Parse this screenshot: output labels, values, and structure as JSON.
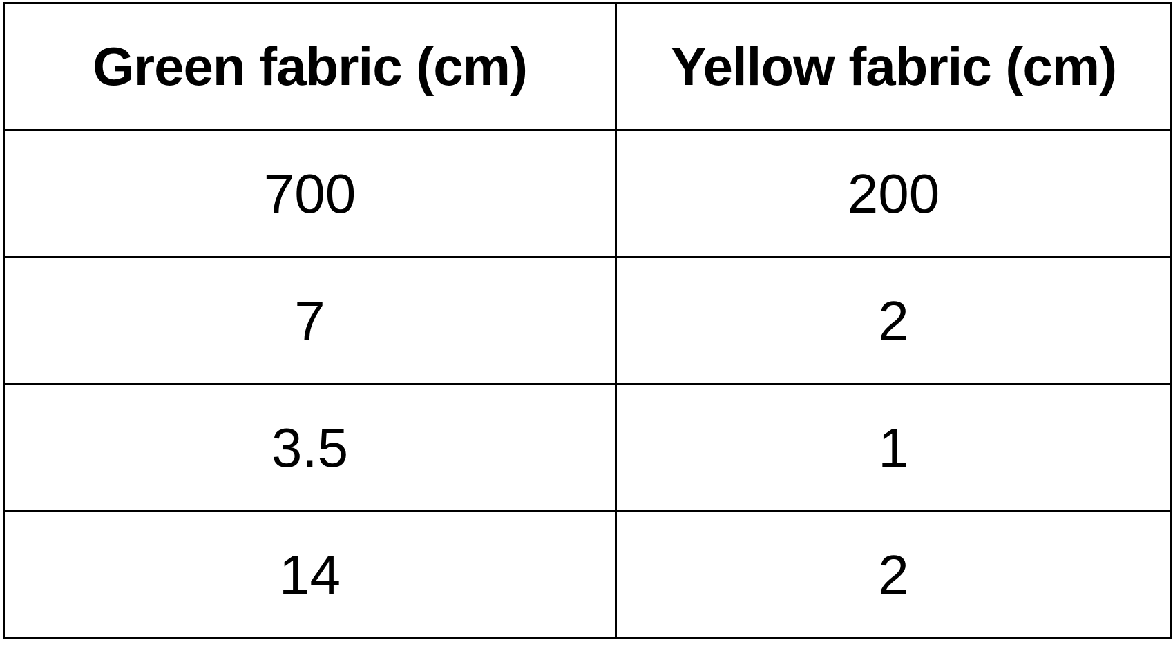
{
  "table": {
    "headers": [
      "Green fabric (cm)",
      "Yellow fabric (cm)"
    ],
    "rows": [
      [
        "700",
        "200"
      ],
      [
        "7",
        "2"
      ],
      [
        "3.5",
        "1"
      ],
      [
        "14",
        "2"
      ]
    ]
  }
}
